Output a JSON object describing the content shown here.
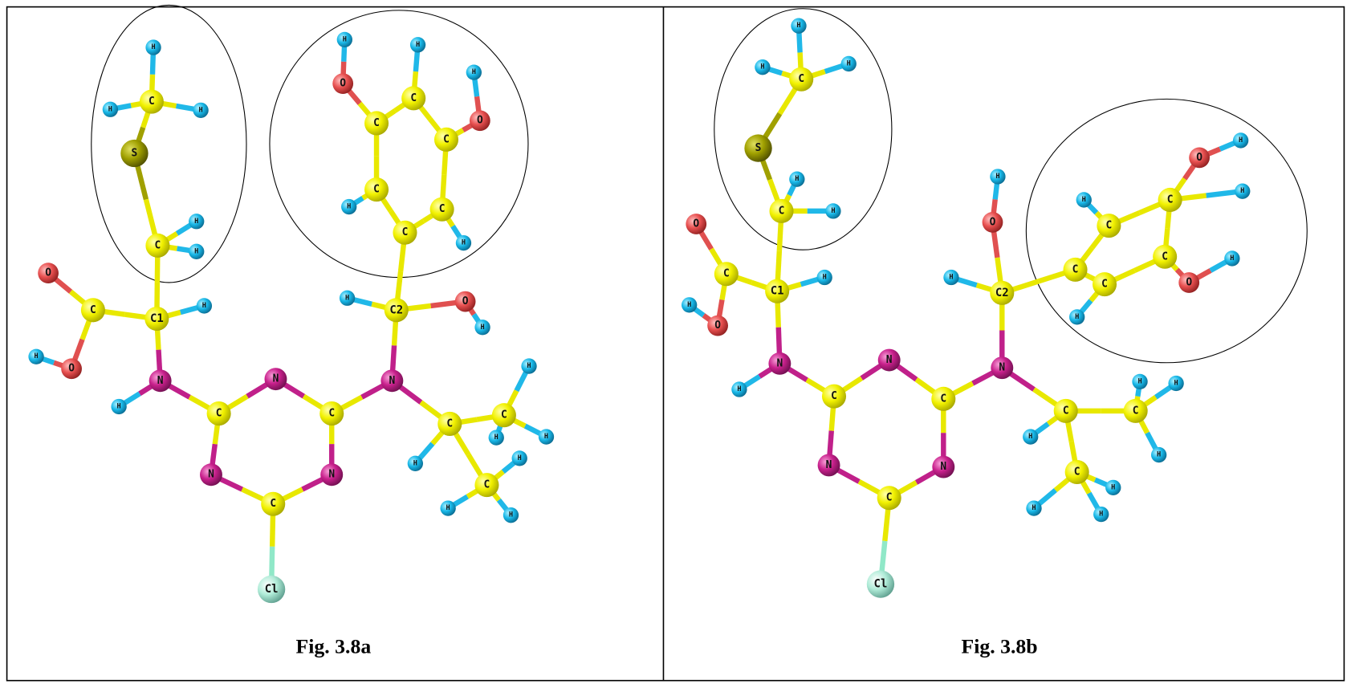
{
  "panels": [
    {
      "caption": "Fig. 3.8a",
      "atoms": [
        "H",
        "C",
        "H",
        "H",
        "S",
        "C",
        "H",
        "H",
        "C1",
        "H",
        "C",
        "O",
        "O",
        "H",
        "N",
        "H",
        "C",
        "N",
        "C",
        "N",
        "C",
        "N",
        "Cl",
        "N",
        "C2",
        "H",
        "O",
        "H",
        "C",
        "C",
        "H",
        "C",
        "H",
        "C",
        "O",
        "H",
        "C",
        "H",
        "C",
        "O",
        "H",
        "C",
        "H",
        "C",
        "H",
        "H",
        "H",
        "C",
        "H",
        "H",
        "H"
      ]
    },
    {
      "caption": "Fig. 3.8b",
      "atoms": [
        "H",
        "C",
        "H",
        "H",
        "S",
        "C",
        "H",
        "H",
        "C1",
        "H",
        "C",
        "O",
        "O",
        "H",
        "N",
        "H",
        "C",
        "N",
        "C",
        "N",
        "C",
        "N",
        "Cl",
        "N",
        "C2",
        "H",
        "O",
        "H",
        "C",
        "C",
        "H",
        "C",
        "O",
        "H",
        "H",
        "C",
        "O",
        "H",
        "C",
        "H",
        "C",
        "H",
        "C",
        "H",
        "H",
        "H",
        "C",
        "H",
        "H",
        "H"
      ]
    }
  ]
}
